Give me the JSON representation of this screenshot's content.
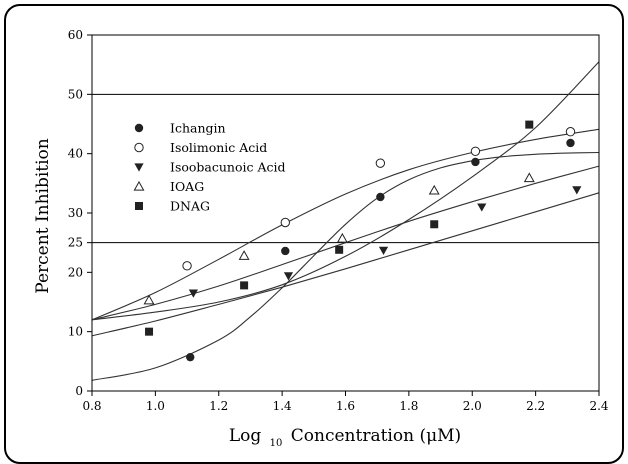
{
  "chart_data": {
    "type": "scatter",
    "xlabel_main": "Log",
    "xlabel_sub": "10",
    "xlabel_rest": "Concentration (μM)",
    "ylabel": "Percent Inhibition",
    "xlim": [
      0.8,
      2.4
    ],
    "ylim": [
      0,
      60
    ],
    "xticks": [
      "0.8",
      "1.0",
      "1.2",
      "1.4",
      "1.6",
      "1.8",
      "2.0",
      "2.2",
      "2.4"
    ],
    "yticks": [
      "0",
      "10",
      "20",
      "25",
      "30",
      "40",
      "50",
      "60"
    ],
    "reference_lines": [
      25,
      50
    ],
    "legend_position": "upper-left",
    "series": [
      {
        "name": "Ichangin",
        "marker": "filled-circle",
        "points": [
          [
            1.11,
            5.7
          ],
          [
            1.41,
            23.6
          ],
          [
            1.71,
            32.7
          ],
          [
            2.01,
            38.6
          ],
          [
            2.31,
            41.8
          ]
        ],
        "fit": [
          [
            0.8,
            1.8
          ],
          [
            1.0,
            3.9
          ],
          [
            1.2,
            8.6
          ],
          [
            1.3,
            12.5
          ],
          [
            1.4,
            17.4
          ],
          [
            1.5,
            22.8
          ],
          [
            1.6,
            28.1
          ],
          [
            1.7,
            32.5
          ],
          [
            1.8,
            35.6
          ],
          [
            1.9,
            37.6
          ],
          [
            2.0,
            38.8
          ],
          [
            2.1,
            39.5
          ],
          [
            2.2,
            39.9
          ],
          [
            2.3,
            40.1
          ],
          [
            2.4,
            40.2
          ]
        ]
      },
      {
        "name": "Isolimonic Acid",
        "marker": "open-circle",
        "points": [
          [
            1.1,
            21.1
          ],
          [
            1.41,
            28.4
          ],
          [
            1.71,
            38.4
          ],
          [
            2.01,
            40.4
          ],
          [
            2.31,
            43.7
          ]
        ],
        "fit": [
          [
            0.8,
            12.0
          ],
          [
            1.0,
            16.6
          ],
          [
            1.2,
            22.2
          ],
          [
            1.4,
            28.0
          ],
          [
            1.6,
            33.2
          ],
          [
            1.8,
            37.3
          ],
          [
            2.0,
            40.2
          ],
          [
            2.2,
            42.4
          ],
          [
            2.4,
            44.1
          ]
        ]
      },
      {
        "name": "Isoobacunoic Acid",
        "marker": "filled-triangle-down",
        "points": [
          [
            1.12,
            16.5
          ],
          [
            1.42,
            19.4
          ],
          [
            1.72,
            23.7
          ],
          [
            2.03,
            31.0
          ],
          [
            2.33,
            33.9
          ]
        ],
        "fit": [
          [
            0.8,
            9.3
          ],
          [
            1.0,
            11.8
          ],
          [
            1.2,
            14.6
          ],
          [
            1.4,
            17.5
          ],
          [
            1.6,
            20.6
          ],
          [
            1.8,
            23.8
          ],
          [
            2.0,
            27.0
          ],
          [
            2.2,
            30.2
          ],
          [
            2.4,
            33.4
          ],
          [
            2.4,
            35.6
          ]
        ]
      },
      {
        "name": "IOAG",
        "marker": "open-triangle-up",
        "points": [
          [
            0.98,
            15.3
          ],
          [
            1.28,
            22.8
          ],
          [
            1.59,
            25.7
          ],
          [
            1.88,
            33.8
          ],
          [
            2.18,
            35.9
          ]
        ],
        "fit": [
          [
            0.8,
            12.0
          ],
          [
            1.0,
            14.6
          ],
          [
            1.2,
            17.7
          ],
          [
            1.4,
            21.3
          ],
          [
            1.6,
            25.0
          ],
          [
            1.8,
            28.6
          ],
          [
            2.0,
            31.9
          ],
          [
            2.2,
            35.0
          ],
          [
            2.4,
            37.9
          ]
        ]
      },
      {
        "name": "DNAG",
        "marker": "filled-square",
        "points": [
          [
            0.98,
            10.0
          ],
          [
            1.28,
            17.8
          ],
          [
            1.58,
            23.8
          ],
          [
            1.88,
            28.1
          ],
          [
            2.18,
            44.9
          ]
        ],
        "fit": [
          [
            0.8,
            12.0
          ],
          [
            1.0,
            13.3
          ],
          [
            1.2,
            15.0
          ],
          [
            1.4,
            17.9
          ],
          [
            1.6,
            22.7
          ],
          [
            1.8,
            28.9
          ],
          [
            2.0,
            36.1
          ],
          [
            2.2,
            44.4
          ],
          [
            2.4,
            55.5
          ]
        ]
      }
    ]
  }
}
